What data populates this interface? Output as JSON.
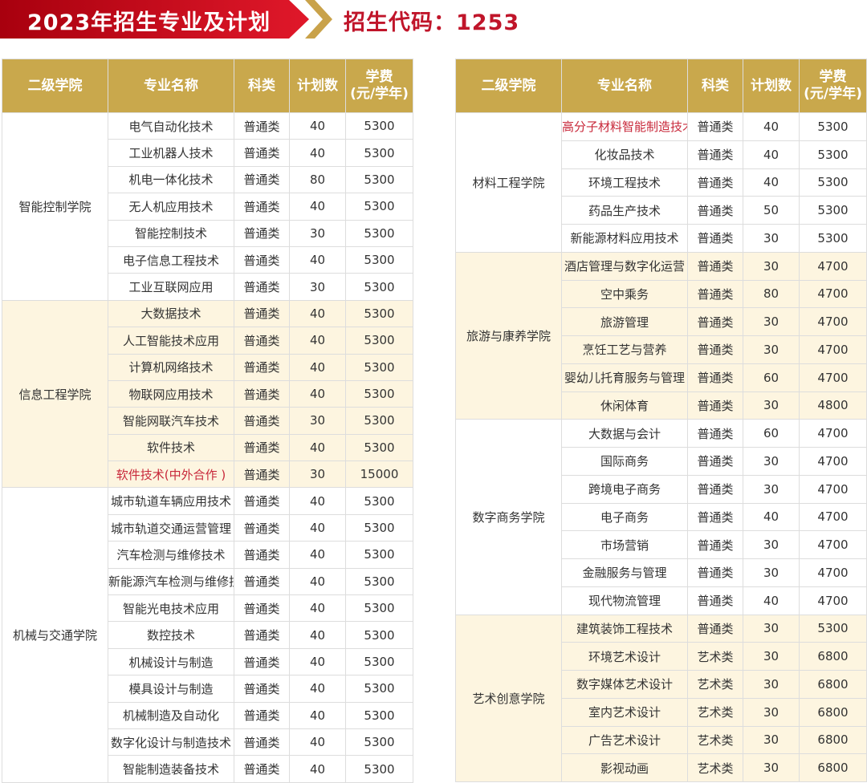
{
  "header": {
    "title": "2023年招生专业及计划",
    "code_label": "招生代码：1253"
  },
  "columns": [
    "二级学院",
    "专业名称",
    "科类",
    "计划数",
    "学费\n(元/学年)"
  ],
  "colors": {
    "header_gold": "#c9a84c",
    "banner_red": "#d0101e",
    "highlight_red": "#c8283a",
    "alt_row": "#fdf5e0"
  },
  "left_table": [
    {
      "college": "智能控制学院",
      "majors": [
        [
          "电气自动化技术",
          "普通类",
          "40",
          "5300"
        ],
        [
          "工业机器人技术",
          "普通类",
          "40",
          "5300"
        ],
        [
          "机电一体化技术",
          "普通类",
          "80",
          "5300"
        ],
        [
          "无人机应用技术",
          "普通类",
          "40",
          "5300"
        ],
        [
          "智能控制技术",
          "普通类",
          "30",
          "5300"
        ],
        [
          "电子信息工程技术",
          "普通类",
          "40",
          "5300"
        ],
        [
          "工业互联网应用",
          "普通类",
          "30",
          "5300"
        ]
      ]
    },
    {
      "college": "信息工程学院",
      "majors": [
        [
          "大数据技术",
          "普通类",
          "40",
          "5300"
        ],
        [
          "人工智能技术应用",
          "普通类",
          "40",
          "5300"
        ],
        [
          "计算机网络技术",
          "普通类",
          "40",
          "5300"
        ],
        [
          "物联网应用技术",
          "普通类",
          "40",
          "5300"
        ],
        [
          "智能网联汽车技术",
          "普通类",
          "30",
          "5300"
        ],
        [
          "软件技术",
          "普通类",
          "40",
          "5300"
        ],
        [
          "软件技术(中外合作 )",
          "普通类",
          "30",
          "15000",
          true
        ]
      ]
    },
    {
      "college": "机械与交通学院",
      "majors": [
        [
          "城市轨道车辆应用技术",
          "普通类",
          "40",
          "5300"
        ],
        [
          "城市轨道交通运营管理",
          "普通类",
          "40",
          "5300"
        ],
        [
          "汽车检测与维修技术",
          "普通类",
          "40",
          "5300"
        ],
        [
          "新能源汽车检测与维修技术",
          "普通类",
          "40",
          "5300"
        ],
        [
          "智能光电技术应用",
          "普通类",
          "40",
          "5300"
        ],
        [
          "数控技术",
          "普通类",
          "40",
          "5300"
        ],
        [
          "机械设计与制造",
          "普通类",
          "40",
          "5300"
        ],
        [
          "模具设计与制造",
          "普通类",
          "40",
          "5300"
        ],
        [
          "机械制造及自动化",
          "普通类",
          "40",
          "5300"
        ],
        [
          "数字化设计与制造技术",
          "普通类",
          "40",
          "5300"
        ],
        [
          "智能制造装备技术",
          "普通类",
          "40",
          "5300"
        ]
      ]
    }
  ],
  "right_table": [
    {
      "college": "材料工程学院",
      "majors": [
        [
          "高分子材料智能制造技术",
          "普通类",
          "40",
          "5300",
          true
        ],
        [
          "化妆品技术",
          "普通类",
          "40",
          "5300"
        ],
        [
          "环境工程技术",
          "普通类",
          "40",
          "5300"
        ],
        [
          "药品生产技术",
          "普通类",
          "50",
          "5300"
        ],
        [
          "新能源材料应用技术",
          "普通类",
          "30",
          "5300"
        ]
      ]
    },
    {
      "college": "旅游与康养学院",
      "majors": [
        [
          "酒店管理与数字化运营",
          "普通类",
          "30",
          "4700"
        ],
        [
          "空中乘务",
          "普通类",
          "80",
          "4700"
        ],
        [
          "旅游管理",
          "普通类",
          "30",
          "4700"
        ],
        [
          "烹饪工艺与营养",
          "普通类",
          "30",
          "4700"
        ],
        [
          "婴幼儿托育服务与管理",
          "普通类",
          "60",
          "4700"
        ],
        [
          "休闲体育",
          "普通类",
          "30",
          "4800"
        ]
      ]
    },
    {
      "college": "数字商务学院",
      "majors": [
        [
          "大数据与会计",
          "普通类",
          "60",
          "4700"
        ],
        [
          "国际商务",
          "普通类",
          "30",
          "4700"
        ],
        [
          "跨境电子商务",
          "普通类",
          "30",
          "4700"
        ],
        [
          "电子商务",
          "普通类",
          "40",
          "4700"
        ],
        [
          "市场营销",
          "普通类",
          "30",
          "4700"
        ],
        [
          "金融服务与管理",
          "普通类",
          "30",
          "4700"
        ],
        [
          "现代物流管理",
          "普通类",
          "40",
          "4700"
        ]
      ]
    },
    {
      "college": "艺术创意学院",
      "majors": [
        [
          "建筑装饰工程技术",
          "普通类",
          "30",
          "5300"
        ],
        [
          "环境艺术设计",
          "艺术类",
          "30",
          "6800"
        ],
        [
          "数字媒体艺术设计",
          "艺术类",
          "30",
          "6800"
        ],
        [
          "室内艺术设计",
          "艺术类",
          "30",
          "6800"
        ],
        [
          "广告艺术设计",
          "艺术类",
          "30",
          "6800"
        ],
        [
          "影视动画",
          "艺术类",
          "30",
          "6800"
        ]
      ]
    }
  ]
}
